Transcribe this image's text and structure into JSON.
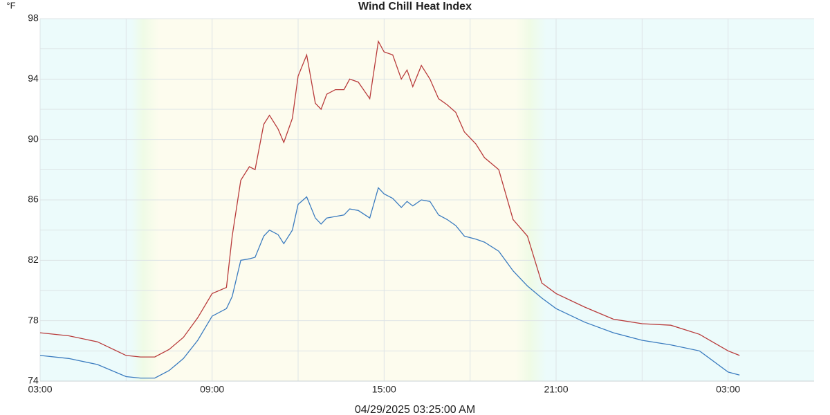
{
  "chart_data": {
    "type": "line",
    "ylabel": "°F",
    "xlabel": "04/29/2025 03:25:00 AM",
    "x": [
      0,
      1,
      2,
      3,
      3.5,
      4,
      4.5,
      5,
      5.5,
      6,
      6.5,
      6.7,
      7,
      7.3,
      7.5,
      7.8,
      8,
      8.3,
      8.5,
      8.8,
      9,
      9.3,
      9.6,
      9.8,
      10,
      10.3,
      10.6,
      10.8,
      11.1,
      11.5,
      11.8,
      12,
      12.3,
      12.6,
      12.8,
      13,
      13.3,
      13.6,
      13.9,
      14.2,
      14.5,
      14.8,
      15.2,
      15.5,
      16,
      16.5,
      17,
      17.5,
      18,
      19,
      20,
      21,
      22,
      23,
      24,
      24.4
    ],
    "series": [
      {
        "name": "Wind Chill",
        "color": "#3a7bbf",
        "values": [
          75.7,
          75.5,
          75.1,
          74.3,
          74.2,
          74.2,
          74.7,
          75.5,
          76.7,
          78.3,
          78.8,
          79.6,
          82.0,
          82.1,
          82.2,
          83.6,
          84.0,
          83.7,
          83.1,
          84.0,
          85.7,
          86.2,
          84.8,
          84.4,
          84.8,
          84.9,
          85.0,
          85.4,
          85.3,
          84.8,
          86.8,
          86.4,
          86.1,
          85.5,
          85.9,
          85.6,
          86.0,
          85.9,
          85.0,
          84.7,
          84.3,
          83.6,
          83.4,
          83.2,
          82.6,
          81.3,
          80.3,
          79.5,
          78.8,
          77.9,
          77.2,
          76.7,
          76.4,
          76.0,
          74.6,
          74.4
        ]
      },
      {
        "name": "Heat Index",
        "color": "#b83a3a",
        "values": [
          77.2,
          77.0,
          76.6,
          75.7,
          75.6,
          75.6,
          76.1,
          76.9,
          78.2,
          79.8,
          80.2,
          83.6,
          87.3,
          88.2,
          88.0,
          91.0,
          91.6,
          90.7,
          89.8,
          91.4,
          94.2,
          95.6,
          92.4,
          92.0,
          93.0,
          93.3,
          93.3,
          94.0,
          93.8,
          92.7,
          96.5,
          95.8,
          95.6,
          94.0,
          94.6,
          93.5,
          94.9,
          94.0,
          92.7,
          92.3,
          91.8,
          90.5,
          89.7,
          88.8,
          88.0,
          84.7,
          83.6,
          80.5,
          79.8,
          78.9,
          78.1,
          77.8,
          77.7,
          77.1,
          76.0,
          75.7
        ]
      }
    ],
    "xlim": [
      0,
      27
    ],
    "xticks": [
      {
        "value": 0,
        "label": "03:00"
      },
      {
        "value": 6,
        "label": "09:00"
      },
      {
        "value": 12,
        "label": "15:00"
      },
      {
        "value": 18,
        "label": "21:00"
      },
      {
        "value": 24,
        "label": "03:00"
      }
    ],
    "x_minor_ticks": [
      3,
      9,
      15,
      21
    ],
    "ylim": [
      74,
      98
    ],
    "yticks": [
      74,
      78,
      82,
      86,
      90,
      94,
      98
    ],
    "y_minor_ticks": [
      76,
      80,
      84,
      88,
      92,
      96
    ],
    "grid": true
  }
}
